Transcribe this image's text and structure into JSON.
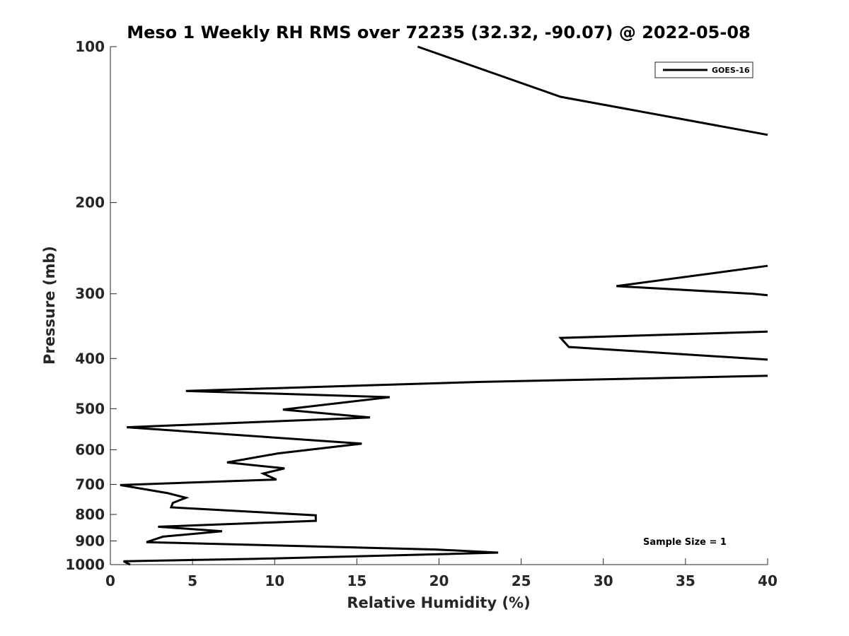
{
  "chart_data": {
    "type": "line",
    "title": "Meso 1 Weekly RH RMS over 72235 (32.32, -90.07) @ 2022-05-08",
    "xlabel": "Relative Humidity (%)",
    "ylabel": "Pressure (mb)",
    "xlim": [
      0,
      40
    ],
    "ylim": [
      1000,
      100
    ],
    "yscale": "log",
    "xticks": [
      0,
      5,
      10,
      15,
      20,
      25,
      30,
      35,
      40
    ],
    "yticks": [
      100,
      200,
      300,
      400,
      500,
      600,
      700,
      800,
      900,
      1000
    ],
    "grid": false,
    "legend_position": "top-right",
    "annotation": "Sample Size = 1",
    "series": [
      {
        "name": "GOES-16",
        "color": "#000000",
        "segments": [
          [
            [
              18.7,
              100
            ],
            [
              27.4,
              125
            ],
            [
              40,
              148
            ]
          ],
          [
            [
              40,
              265
            ],
            [
              30.8,
              290
            ],
            [
              39.1,
              300
            ],
            [
              40,
              302
            ]
          ],
          [
            [
              40,
              355
            ],
            [
              27.4,
              365
            ],
            [
              27.9,
              380
            ],
            [
              40,
              402
            ]
          ],
          [
            [
              40,
              432
            ],
            [
              22.4,
              444
            ],
            [
              4.6,
              462
            ],
            [
              17.0,
              475
            ],
            [
              10.5,
              502
            ],
            [
              15.8,
              520
            ],
            [
              1.0,
              543
            ],
            [
              15.3,
              584
            ],
            [
              10.2,
              610
            ],
            [
              7.1,
              635
            ],
            [
              10.6,
              652
            ],
            [
              9.3,
              667
            ],
            [
              10.1,
              685
            ],
            [
              0.6,
              702
            ],
            [
              3.5,
              728
            ],
            [
              4.6,
              743
            ],
            [
              3.8,
              760
            ],
            [
              3.7,
              775
            ],
            [
              12.5,
              803
            ],
            [
              12.5,
              823
            ],
            [
              2.9,
              845
            ],
            [
              6.8,
              862
            ],
            [
              3.2,
              883
            ],
            [
              2.2,
              905
            ],
            [
              19.8,
              935
            ],
            [
              23.6,
              948
            ],
            [
              20.0,
              955
            ],
            [
              8.7,
              975
            ],
            [
              0.8,
              985
            ],
            [
              1.2,
              1000
            ]
          ]
        ]
      }
    ]
  }
}
